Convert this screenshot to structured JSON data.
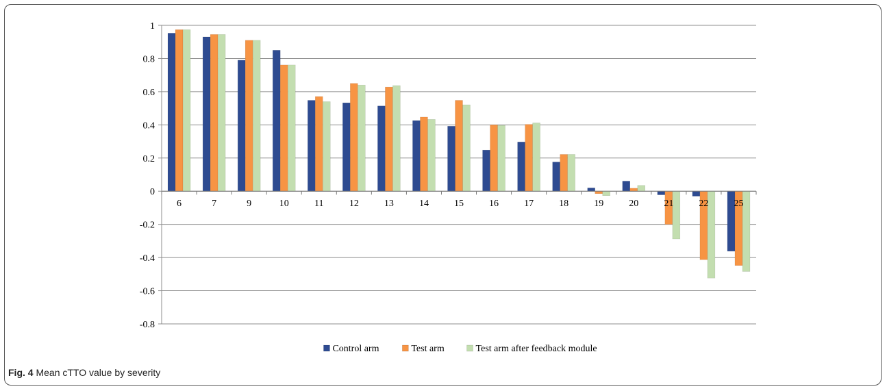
{
  "figure": {
    "label": "Fig. 4",
    "caption": "Mean cTTO value by severity"
  },
  "chart_data": {
    "type": "bar",
    "title": "",
    "xlabel": "",
    "ylabel": "",
    "categories": [
      "6",
      "7",
      "9",
      "10",
      "11",
      "12",
      "13",
      "14",
      "15",
      "16",
      "17",
      "18",
      "19",
      "20",
      "21",
      "22",
      "25"
    ],
    "ylim": [
      -0.8,
      1
    ],
    "yticks": [
      1,
      0.8,
      0.6,
      0.4,
      0.2,
      0,
      -0.2,
      -0.4,
      -0.6,
      -0.8
    ],
    "ytick_labels": [
      "1",
      "0.8",
      "0.6",
      "0.4",
      "0.2",
      "0",
      "-0.2",
      "-0.4",
      "-0.6",
      "-0.8"
    ],
    "grid": true,
    "legend_position": "bottom",
    "series": [
      {
        "name": "Control arm",
        "color": "#2E4B91",
        "values": [
          0.953,
          0.93,
          0.79,
          0.85,
          0.548,
          0.533,
          0.514,
          0.426,
          0.392,
          0.248,
          0.297,
          0.176,
          0.02,
          0.061,
          -0.022,
          -0.03,
          -0.362
        ]
      },
      {
        "name": "Test arm",
        "color": "#F79444",
        "values": [
          0.974,
          0.945,
          0.91,
          0.761,
          0.571,
          0.65,
          0.628,
          0.447,
          0.548,
          0.4,
          0.403,
          0.222,
          -0.015,
          0.018,
          -0.2,
          -0.413,
          -0.448
        ]
      },
      {
        "name": "Test arm after feedback module",
        "color": "#C3DEB0",
        "values": [
          0.974,
          0.945,
          0.91,
          0.761,
          0.54,
          0.64,
          0.637,
          0.433,
          0.521,
          0.397,
          0.412,
          0.222,
          -0.027,
          0.035,
          -0.288,
          -0.524,
          -0.484
        ]
      }
    ]
  }
}
